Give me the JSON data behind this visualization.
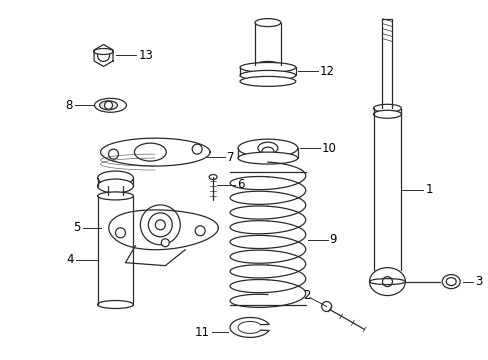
{
  "bg_color": "#ffffff",
  "line_color": "#2a2a2a",
  "label_color": "#000000",
  "label_fontsize": 8.5,
  "fig_width": 4.89,
  "fig_height": 3.6,
  "dpi": 100
}
